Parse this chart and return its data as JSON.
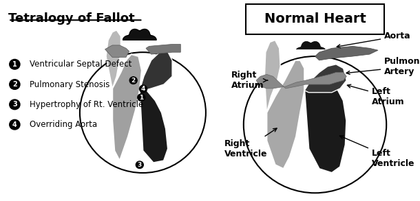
{
  "background_color": "#f0f0f0",
  "left_panel": {
    "title": "Tetralogy of Fallot",
    "title_fontsize": 13,
    "title_bold": true,
    "title_underline": true,
    "legend_items": [
      {
        "num": "1",
        "text": "Ventricular Septal Defect"
      },
      {
        "num": "2",
        "text": "Pulmonary Stenosis"
      },
      {
        "num": "3",
        "text": "Hypertrophy of Rt. Ventricle"
      },
      {
        "num": "4",
        "text": "Overriding Aorta"
      }
    ],
    "legend_fontsize": 8.5
  },
  "right_panel": {
    "title": "Normal Heart",
    "title_fontsize": 14,
    "title_bold": true,
    "box": true,
    "label_fontsize": 9
  },
  "fig_width": 6.1,
  "fig_height": 2.93,
  "dpi": 100
}
